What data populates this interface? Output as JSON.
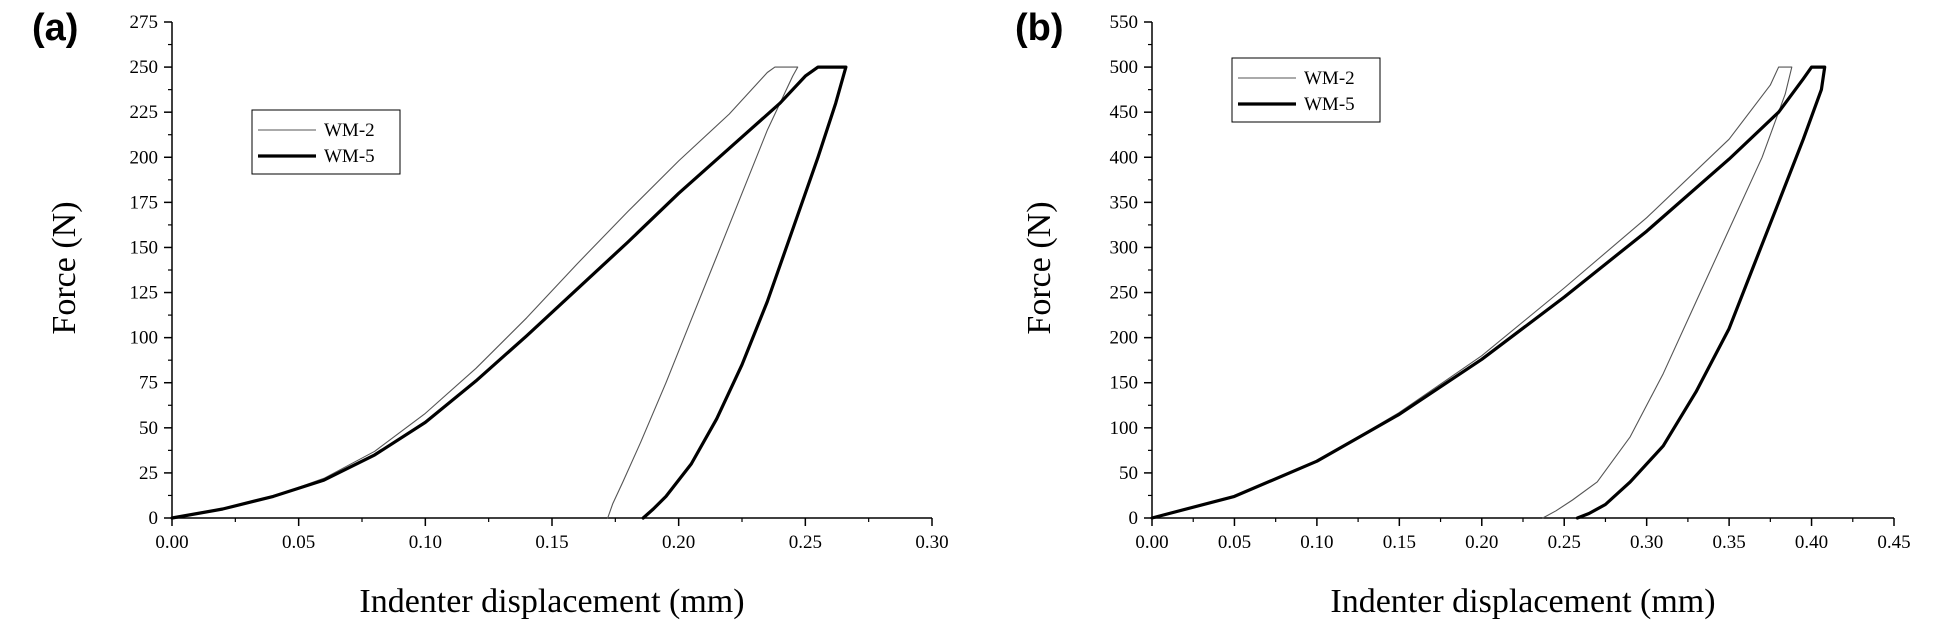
{
  "chart_data": [
    {
      "panel_label": "(a)",
      "type": "line",
      "xlabel": "Indenter displacement (mm)",
      "ylabel": "Force (N)",
      "xlim": [
        0.0,
        0.3
      ],
      "ylim": [
        0,
        275
      ],
      "xticks": [
        "0.00",
        "0.05",
        "0.10",
        "0.15",
        "0.20",
        "0.25",
        "0.30"
      ],
      "yticks": [
        "0",
        "25",
        "50",
        "75",
        "100",
        "125",
        "150",
        "175",
        "200",
        "225",
        "250",
        "275"
      ],
      "legend_position": "upper-left",
      "grid": false,
      "series": [
        {
          "name": "WM-2",
          "style": "thin",
          "color": "#555555",
          "points": [
            [
              0.0,
              0
            ],
            [
              0.02,
              5
            ],
            [
              0.04,
              12
            ],
            [
              0.06,
              22
            ],
            [
              0.08,
              37
            ],
            [
              0.1,
              58
            ],
            [
              0.12,
              83
            ],
            [
              0.14,
              111
            ],
            [
              0.16,
              141
            ],
            [
              0.18,
              170
            ],
            [
              0.2,
              198
            ],
            [
              0.22,
              224
            ],
            [
              0.235,
              247
            ],
            [
              0.238,
              250
            ],
            [
              0.247,
              250
            ],
            [
              0.245,
              245
            ],
            [
              0.235,
              215
            ],
            [
              0.225,
              180
            ],
            [
              0.215,
              145
            ],
            [
              0.205,
              110
            ],
            [
              0.195,
              75
            ],
            [
              0.185,
              42
            ],
            [
              0.178,
              20
            ],
            [
              0.174,
              8
            ],
            [
              0.172,
              0
            ]
          ]
        },
        {
          "name": "WM-5",
          "style": "thick",
          "color": "#000000",
          "points": [
            [
              0.0,
              0
            ],
            [
              0.02,
              5
            ],
            [
              0.04,
              12
            ],
            [
              0.06,
              21
            ],
            [
              0.08,
              35
            ],
            [
              0.1,
              53
            ],
            [
              0.12,
              76
            ],
            [
              0.14,
              101
            ],
            [
              0.16,
              127
            ],
            [
              0.18,
              153
            ],
            [
              0.2,
              180
            ],
            [
              0.22,
              205
            ],
            [
              0.24,
              230
            ],
            [
              0.25,
              245
            ],
            [
              0.255,
              250
            ],
            [
              0.266,
              250
            ],
            [
              0.262,
              230
            ],
            [
              0.255,
              200
            ],
            [
              0.245,
              160
            ],
            [
              0.235,
              120
            ],
            [
              0.225,
              85
            ],
            [
              0.215,
              55
            ],
            [
              0.205,
              30
            ],
            [
              0.195,
              12
            ],
            [
              0.19,
              5
            ],
            [
              0.186,
              0
            ]
          ]
        }
      ]
    },
    {
      "panel_label": "(b)",
      "type": "line",
      "xlabel": "Indenter displacement (mm)",
      "ylabel": "Force (N)",
      "xlim": [
        0.0,
        0.45
      ],
      "ylim": [
        0,
        550
      ],
      "xticks": [
        "0.00",
        "0.05",
        "0.10",
        "0.15",
        "0.20",
        "0.25",
        "0.30",
        "0.35",
        "0.40",
        "0.45"
      ],
      "yticks": [
        "0",
        "50",
        "100",
        "150",
        "200",
        "250",
        "300",
        "350",
        "400",
        "450",
        "500",
        "550"
      ],
      "legend_position": "upper-left",
      "grid": false,
      "series": [
        {
          "name": "WM-2",
          "style": "thin",
          "color": "#555555",
          "points": [
            [
              0.0,
              0
            ],
            [
              0.05,
              24
            ],
            [
              0.1,
              63
            ],
            [
              0.15,
              117
            ],
            [
              0.2,
              180
            ],
            [
              0.25,
              255
            ],
            [
              0.3,
              333
            ],
            [
              0.35,
              420
            ],
            [
              0.375,
              480
            ],
            [
              0.38,
              500
            ],
            [
              0.388,
              500
            ],
            [
              0.384,
              470
            ],
            [
              0.37,
              400
            ],
            [
              0.35,
              320
            ],
            [
              0.33,
              240
            ],
            [
              0.31,
              160
            ],
            [
              0.29,
              90
            ],
            [
              0.27,
              40
            ],
            [
              0.255,
              20
            ],
            [
              0.245,
              8
            ],
            [
              0.237,
              0
            ]
          ]
        },
        {
          "name": "WM-5",
          "style": "thick",
          "color": "#000000",
          "points": [
            [
              0.0,
              0
            ],
            [
              0.05,
              24
            ],
            [
              0.1,
              63
            ],
            [
              0.15,
              115
            ],
            [
              0.2,
              176
            ],
            [
              0.25,
              245
            ],
            [
              0.3,
              318
            ],
            [
              0.35,
              398
            ],
            [
              0.38,
              450
            ],
            [
              0.395,
              487
            ],
            [
              0.4,
              500
            ],
            [
              0.408,
              500
            ],
            [
              0.406,
              475
            ],
            [
              0.395,
              420
            ],
            [
              0.38,
              350
            ],
            [
              0.365,
              280
            ],
            [
              0.35,
              210
            ],
            [
              0.33,
              140
            ],
            [
              0.31,
              80
            ],
            [
              0.29,
              40
            ],
            [
              0.275,
              15
            ],
            [
              0.265,
              5
            ],
            [
              0.258,
              0
            ]
          ]
        }
      ]
    }
  ]
}
